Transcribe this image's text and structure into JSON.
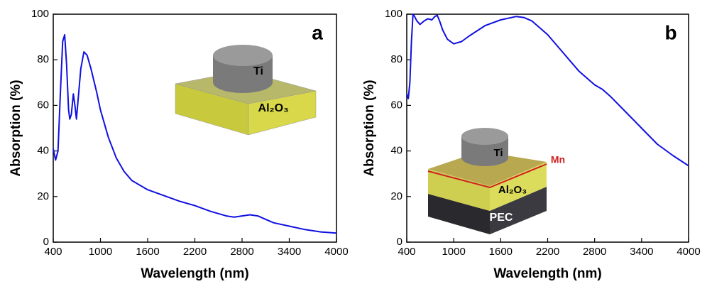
{
  "chart_data": [
    {
      "type": "line",
      "panel": "a",
      "xlabel": "Wavelength (nm)",
      "ylabel": "Absorption (%)",
      "inset_labels": [
        "Ti",
        "Al₂O₃"
      ],
      "color": "#1010e0",
      "x": [
        400,
        430,
        460,
        490,
        520,
        545,
        570,
        595,
        610,
        630,
        655,
        675,
        695,
        715,
        750,
        790,
        830,
        880,
        950,
        1000,
        1100,
        1200,
        1300,
        1400,
        1600,
        1800,
        2000,
        2200,
        2400,
        2600,
        2700,
        2800,
        2900,
        3000,
        3100,
        3200,
        3400,
        3600,
        3800,
        4000
      ],
      "values": [
        41,
        36,
        40,
        65,
        88,
        91,
        78,
        58,
        54,
        56,
        65,
        60,
        54,
        62,
        76,
        83.5,
        82,
        76,
        66,
        58,
        46,
        37,
        31,
        27,
        23,
        20.5,
        18,
        16,
        13.5,
        11.5,
        11,
        11.5,
        12,
        11.5,
        10,
        8.5,
        7,
        5.5,
        4.5,
        4
      ],
      "xlim": [
        400,
        4000
      ],
      "xticks": [
        400,
        1000,
        1600,
        2200,
        2800,
        3400,
        4000
      ],
      "ylim": [
        0,
        100
      ],
      "yticks": [
        0,
        20,
        40,
        60,
        80,
        100
      ]
    },
    {
      "type": "line",
      "panel": "b",
      "xlabel": "Wavelength (nm)",
      "ylabel": "Absorption (%)",
      "inset_labels": [
        "Ti",
        "Al₂O₃",
        "PEC",
        "Mn"
      ],
      "color": "#1010e0",
      "x": [
        400,
        420,
        440,
        460,
        480,
        500,
        530,
        570,
        620,
        670,
        720,
        760,
        790,
        820,
        860,
        920,
        1000,
        1100,
        1200,
        1400,
        1600,
        1800,
        1900,
        2000,
        2200,
        2400,
        2600,
        2800,
        2900,
        3000,
        3200,
        3400,
        3600,
        3800,
        4000
      ],
      "values": [
        65,
        63,
        70,
        88,
        100,
        99,
        97,
        95.5,
        97,
        98,
        97.5,
        99,
        99.5,
        97,
        93,
        89,
        87,
        88,
        90.5,
        95,
        97.5,
        99,
        98.5,
        97,
        91,
        83,
        75,
        69,
        67,
        64,
        57,
        50,
        43,
        38,
        33.5
      ],
      "xlim": [
        400,
        4000
      ],
      "xticks": [
        400,
        1000,
        1600,
        2200,
        2800,
        3400,
        4000
      ],
      "ylim": [
        0,
        100
      ],
      "yticks": [
        0,
        20,
        40,
        60,
        80,
        100
      ]
    }
  ]
}
